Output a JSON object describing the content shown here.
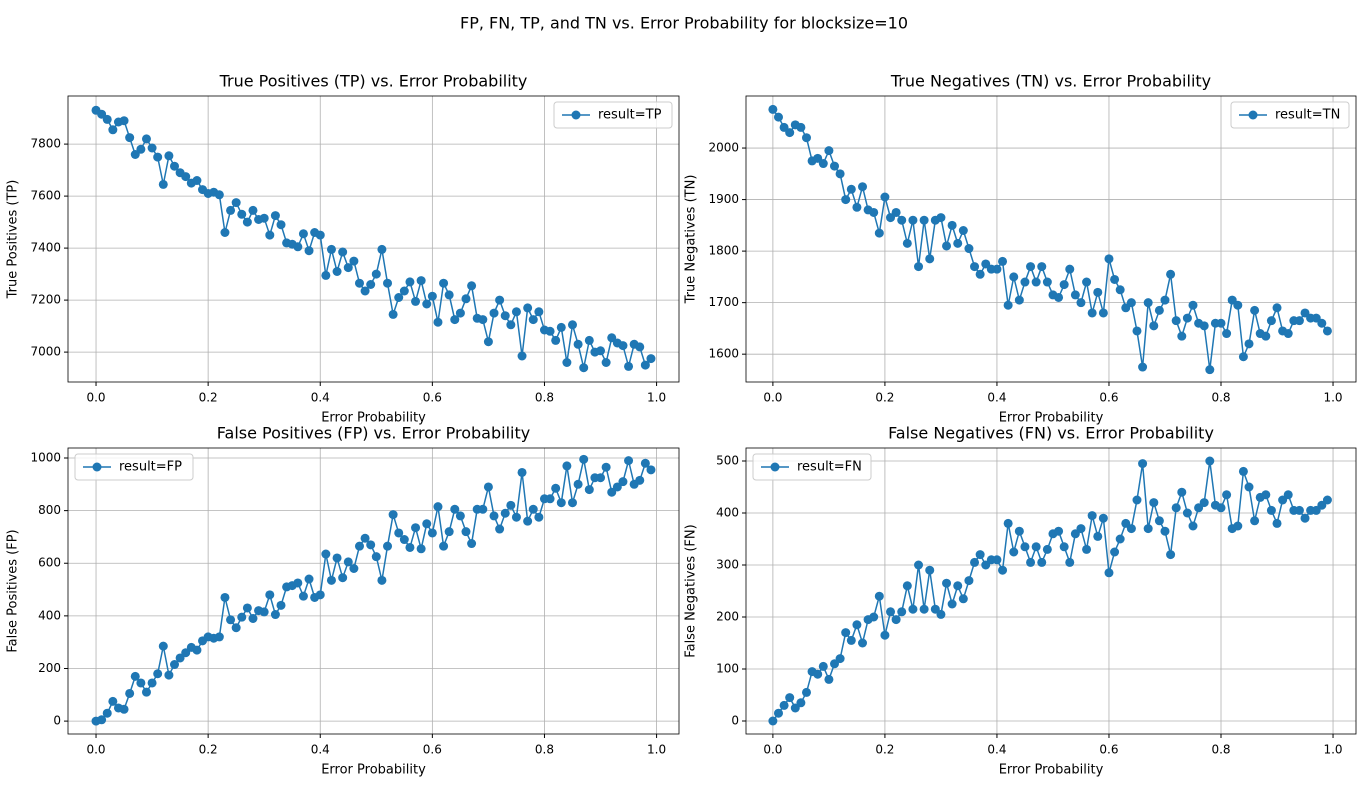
{
  "title": "FP, FN, TP, and TN vs. Error Probability for blocksize=10",
  "chart_data": [
    {
      "type": "line",
      "title": "True Positives (TP) vs. Error Probability",
      "xlabel": "Error Probability",
      "ylabel": "True Positives (TP)",
      "xlim": [
        -0.05,
        1.04
      ],
      "ylim": [
        6885,
        7985
      ],
      "xticks": [
        {
          "value": 0,
          "label": "0.0"
        },
        0.2,
        0.4,
        0.6,
        0.8,
        {
          "value": 1,
          "label": "1.0"
        }
      ],
      "yticks": [
        7000,
        7200,
        7400,
        7600,
        7800
      ],
      "grid": true,
      "legend": "upper right",
      "x": [
        0,
        0.01,
        0.02,
        0.03,
        0.04,
        0.05,
        0.06,
        0.07,
        0.08,
        0.09,
        0.1,
        0.11,
        0.12,
        0.13,
        0.14,
        0.15,
        0.16,
        0.17,
        0.18,
        0.19,
        0.2,
        0.21,
        0.22,
        0.23,
        0.24,
        0.25,
        0.26,
        0.27,
        0.28,
        0.29,
        0.3,
        0.31,
        0.32,
        0.33,
        0.34,
        0.35,
        0.36,
        0.37,
        0.38,
        0.39,
        0.4,
        0.41,
        0.42,
        0.43,
        0.44,
        0.45,
        0.46,
        0.47,
        0.48,
        0.49,
        0.5,
        0.51,
        0.52,
        0.53,
        0.54,
        0.55,
        0.56,
        0.57,
        0.58,
        0.59,
        0.6,
        0.61,
        0.62,
        0.63,
        0.64,
        0.65,
        0.66,
        0.67,
        0.68,
        0.69,
        0.7,
        0.71,
        0.72,
        0.73,
        0.74,
        0.75,
        0.76,
        0.77,
        0.78,
        0.79,
        0.8,
        0.81,
        0.82,
        0.83,
        0.84,
        0.85,
        0.86,
        0.87,
        0.88,
        0.89,
        0.9,
        0.91,
        0.92,
        0.93,
        0.94,
        0.95,
        0.96,
        0.97,
        0.98,
        0.99
      ],
      "series": [
        {
          "name": "result=TP",
          "color": "#1f77b4",
          "values": [
            7930,
            7915,
            7895,
            7855,
            7885,
            7890,
            7825,
            7760,
            7780,
            7820,
            7785,
            7750,
            7645,
            7755,
            7715,
            7690,
            7675,
            7650,
            7660,
            7625,
            7610,
            7615,
            7605,
            7460,
            7545,
            7575,
            7530,
            7500,
            7545,
            7510,
            7515,
            7450,
            7525,
            7490,
            7420,
            7415,
            7405,
            7455,
            7390,
            7460,
            7450,
            7295,
            7395,
            7310,
            7385,
            7325,
            7350,
            7265,
            7235,
            7260,
            7300,
            7395,
            7265,
            7145,
            7210,
            7235,
            7270,
            7195,
            7275,
            7185,
            7215,
            7115,
            7265,
            7220,
            7125,
            7150,
            7205,
            7255,
            7130,
            7125,
            7040,
            7150,
            7200,
            7140,
            7105,
            7155,
            6985,
            7170,
            7125,
            7155,
            7085,
            7080,
            7045,
            7095,
            6960,
            7105,
            7030,
            6940,
            7045,
            7000,
            7005,
            6960,
            7055,
            7035,
            7025,
            6945,
            7030,
            7020,
            6950,
            6975
          ]
        }
      ]
    },
    {
      "type": "line",
      "title": "True Negatives (TN) vs. Error Probability",
      "xlabel": "Error Probability",
      "ylabel": "True Negatives (TN)",
      "xlim": [
        -0.048,
        1.041
      ],
      "ylim": [
        1546,
        2101
      ],
      "xticks": [
        {
          "value": 0,
          "label": "0.0"
        },
        0.2,
        0.4,
        0.6,
        0.8,
        {
          "value": 1,
          "label": "1.0"
        }
      ],
      "yticks": [
        1600,
        1700,
        1800,
        1900,
        2000
      ],
      "grid": true,
      "legend": "upper right",
      "x": [
        0,
        0.01,
        0.02,
        0.03,
        0.04,
        0.05,
        0.06,
        0.07,
        0.08,
        0.09,
        0.1,
        0.11,
        0.12,
        0.13,
        0.14,
        0.15,
        0.16,
        0.17,
        0.18,
        0.19,
        0.2,
        0.21,
        0.22,
        0.23,
        0.24,
        0.25,
        0.26,
        0.27,
        0.28,
        0.29,
        0.3,
        0.31,
        0.32,
        0.33,
        0.34,
        0.35,
        0.36,
        0.37,
        0.38,
        0.39,
        0.4,
        0.41,
        0.42,
        0.43,
        0.44,
        0.45,
        0.46,
        0.47,
        0.48,
        0.49,
        0.5,
        0.51,
        0.52,
        0.53,
        0.54,
        0.55,
        0.56,
        0.57,
        0.58,
        0.59,
        0.6,
        0.61,
        0.62,
        0.63,
        0.64,
        0.65,
        0.66,
        0.67,
        0.68,
        0.69,
        0.7,
        0.71,
        0.72,
        0.73,
        0.74,
        0.75,
        0.76,
        0.77,
        0.78,
        0.79,
        0.8,
        0.81,
        0.82,
        0.83,
        0.84,
        0.85,
        0.86,
        0.87,
        0.88,
        0.89,
        0.9,
        0.91,
        0.92,
        0.93,
        0.94,
        0.95,
        0.96,
        0.97,
        0.98,
        0.99
      ],
      "series": [
        {
          "name": "result=TN",
          "color": "#1f77b4",
          "values": [
            2075,
            2060,
            2040,
            2030,
            2045,
            2040,
            2020,
            1975,
            1980,
            1970,
            1995,
            1965,
            1950,
            1900,
            1920,
            1885,
            1925,
            1880,
            1875,
            1835,
            1905,
            1865,
            1875,
            1860,
            1815,
            1860,
            1770,
            1860,
            1785,
            1860,
            1865,
            1810,
            1850,
            1815,
            1840,
            1805,
            1770,
            1755,
            1775,
            1765,
            1765,
            1780,
            1695,
            1750,
            1705,
            1740,
            1770,
            1740,
            1770,
            1740,
            1715,
            1710,
            1735,
            1765,
            1715,
            1700,
            1740,
            1680,
            1720,
            1680,
            1785,
            1745,
            1725,
            1690,
            1700,
            1645,
            1575,
            1700,
            1655,
            1685,
            1705,
            1755,
            1665,
            1635,
            1670,
            1695,
            1660,
            1655,
            1570,
            1660,
            1660,
            1640,
            1705,
            1695,
            1595,
            1620,
            1685,
            1640,
            1635,
            1665,
            1690,
            1645,
            1640,
            1665,
            1665,
            1680,
            1670,
            1670,
            1660,
            1645
          ]
        }
      ]
    },
    {
      "type": "line",
      "title": "False Positives (FP) vs. Error Probability",
      "xlabel": "Error Probability",
      "ylabel": "False Positives (FP)",
      "xlim": [
        -0.05,
        1.04
      ],
      "ylim": [
        -49,
        1038
      ],
      "xticks": [
        {
          "value": 0,
          "label": "0.0"
        },
        0.2,
        0.4,
        0.6,
        0.8,
        {
          "value": 1,
          "label": "1.0"
        }
      ],
      "yticks": [
        0,
        200,
        400,
        600,
        800,
        1000
      ],
      "grid": true,
      "legend": "upper left",
      "x": [
        0,
        0.01,
        0.02,
        0.03,
        0.04,
        0.05,
        0.06,
        0.07,
        0.08,
        0.09,
        0.1,
        0.11,
        0.12,
        0.13,
        0.14,
        0.15,
        0.16,
        0.17,
        0.18,
        0.19,
        0.2,
        0.21,
        0.22,
        0.23,
        0.24,
        0.25,
        0.26,
        0.27,
        0.28,
        0.29,
        0.3,
        0.31,
        0.32,
        0.33,
        0.34,
        0.35,
        0.36,
        0.37,
        0.38,
        0.39,
        0.4,
        0.41,
        0.42,
        0.43,
        0.44,
        0.45,
        0.46,
        0.47,
        0.48,
        0.49,
        0.5,
        0.51,
        0.52,
        0.53,
        0.54,
        0.55,
        0.56,
        0.57,
        0.58,
        0.59,
        0.6,
        0.61,
        0.62,
        0.63,
        0.64,
        0.65,
        0.66,
        0.67,
        0.68,
        0.69,
        0.7,
        0.71,
        0.72,
        0.73,
        0.74,
        0.75,
        0.76,
        0.77,
        0.78,
        0.79,
        0.8,
        0.81,
        0.82,
        0.83,
        0.84,
        0.85,
        0.86,
        0.87,
        0.88,
        0.89,
        0.9,
        0.91,
        0.92,
        0.93,
        0.94,
        0.95,
        0.96,
        0.97,
        0.98,
        0.99
      ],
      "series": [
        {
          "name": "result=FP",
          "color": "#1f77b4",
          "values": [
            0,
            5,
            30,
            75,
            50,
            45,
            105,
            170,
            145,
            110,
            145,
            180,
            285,
            175,
            215,
            240,
            260,
            280,
            270,
            305,
            320,
            315,
            320,
            470,
            385,
            355,
            395,
            430,
            390,
            420,
            415,
            480,
            405,
            440,
            510,
            515,
            525,
            475,
            540,
            470,
            480,
            635,
            535,
            620,
            545,
            605,
            580,
            665,
            695,
            670,
            625,
            535,
            665,
            785,
            715,
            690,
            660,
            735,
            655,
            750,
            715,
            815,
            665,
            720,
            805,
            780,
            720,
            675,
            805,
            805,
            890,
            780,
            730,
            790,
            820,
            775,
            945,
            760,
            805,
            775,
            845,
            845,
            885,
            830,
            970,
            830,
            900,
            995,
            880,
            925,
            925,
            965,
            870,
            890,
            910,
            990,
            900,
            915,
            980,
            955
          ]
        }
      ]
    },
    {
      "type": "line",
      "title": "False Negatives (FN) vs. Error Probability",
      "xlabel": "Error Probability",
      "ylabel": "False Negatives (FN)",
      "xlim": [
        -0.048,
        1.041
      ],
      "ylim": [
        -25,
        525
      ],
      "xticks": [
        {
          "value": 0,
          "label": "0.0"
        },
        0.2,
        0.4,
        0.6,
        0.8,
        {
          "value": 1,
          "label": "1.0"
        }
      ],
      "yticks": [
        0,
        100,
        200,
        300,
        400,
        500
      ],
      "grid": true,
      "legend": "upper left",
      "x": [
        0,
        0.01,
        0.02,
        0.03,
        0.04,
        0.05,
        0.06,
        0.07,
        0.08,
        0.09,
        0.1,
        0.11,
        0.12,
        0.13,
        0.14,
        0.15,
        0.16,
        0.17,
        0.18,
        0.19,
        0.2,
        0.21,
        0.22,
        0.23,
        0.24,
        0.25,
        0.26,
        0.27,
        0.28,
        0.29,
        0.3,
        0.31,
        0.32,
        0.33,
        0.34,
        0.35,
        0.36,
        0.37,
        0.38,
        0.39,
        0.4,
        0.41,
        0.42,
        0.43,
        0.44,
        0.45,
        0.46,
        0.47,
        0.48,
        0.49,
        0.5,
        0.51,
        0.52,
        0.53,
        0.54,
        0.55,
        0.56,
        0.57,
        0.58,
        0.59,
        0.6,
        0.61,
        0.62,
        0.63,
        0.64,
        0.65,
        0.66,
        0.67,
        0.68,
        0.69,
        0.7,
        0.71,
        0.72,
        0.73,
        0.74,
        0.75,
        0.76,
        0.77,
        0.78,
        0.79,
        0.8,
        0.81,
        0.82,
        0.83,
        0.84,
        0.85,
        0.86,
        0.87,
        0.88,
        0.89,
        0.9,
        0.91,
        0.92,
        0.93,
        0.94,
        0.95,
        0.96,
        0.97,
        0.98,
        0.99
      ],
      "series": [
        {
          "name": "result=FN",
          "color": "#1f77b4",
          "values": [
            0,
            15,
            30,
            45,
            25,
            35,
            55,
            95,
            90,
            105,
            80,
            110,
            120,
            170,
            155,
            185,
            150,
            195,
            200,
            240,
            165,
            210,
            195,
            210,
            260,
            215,
            300,
            215,
            290,
            215,
            205,
            265,
            225,
            260,
            235,
            270,
            305,
            320,
            300,
            310,
            310,
            290,
            380,
            325,
            365,
            335,
            305,
            335,
            305,
            330,
            360,
            365,
            335,
            305,
            360,
            370,
            330,
            395,
            355,
            390,
            285,
            325,
            350,
            380,
            370,
            425,
            495,
            370,
            420,
            385,
            365,
            320,
            410,
            440,
            400,
            375,
            410,
            420,
            500,
            415,
            410,
            435,
            370,
            375,
            480,
            450,
            385,
            430,
            435,
            405,
            380,
            425,
            435,
            405,
            405,
            390,
            405,
            405,
            415,
            425
          ]
        }
      ]
    }
  ]
}
